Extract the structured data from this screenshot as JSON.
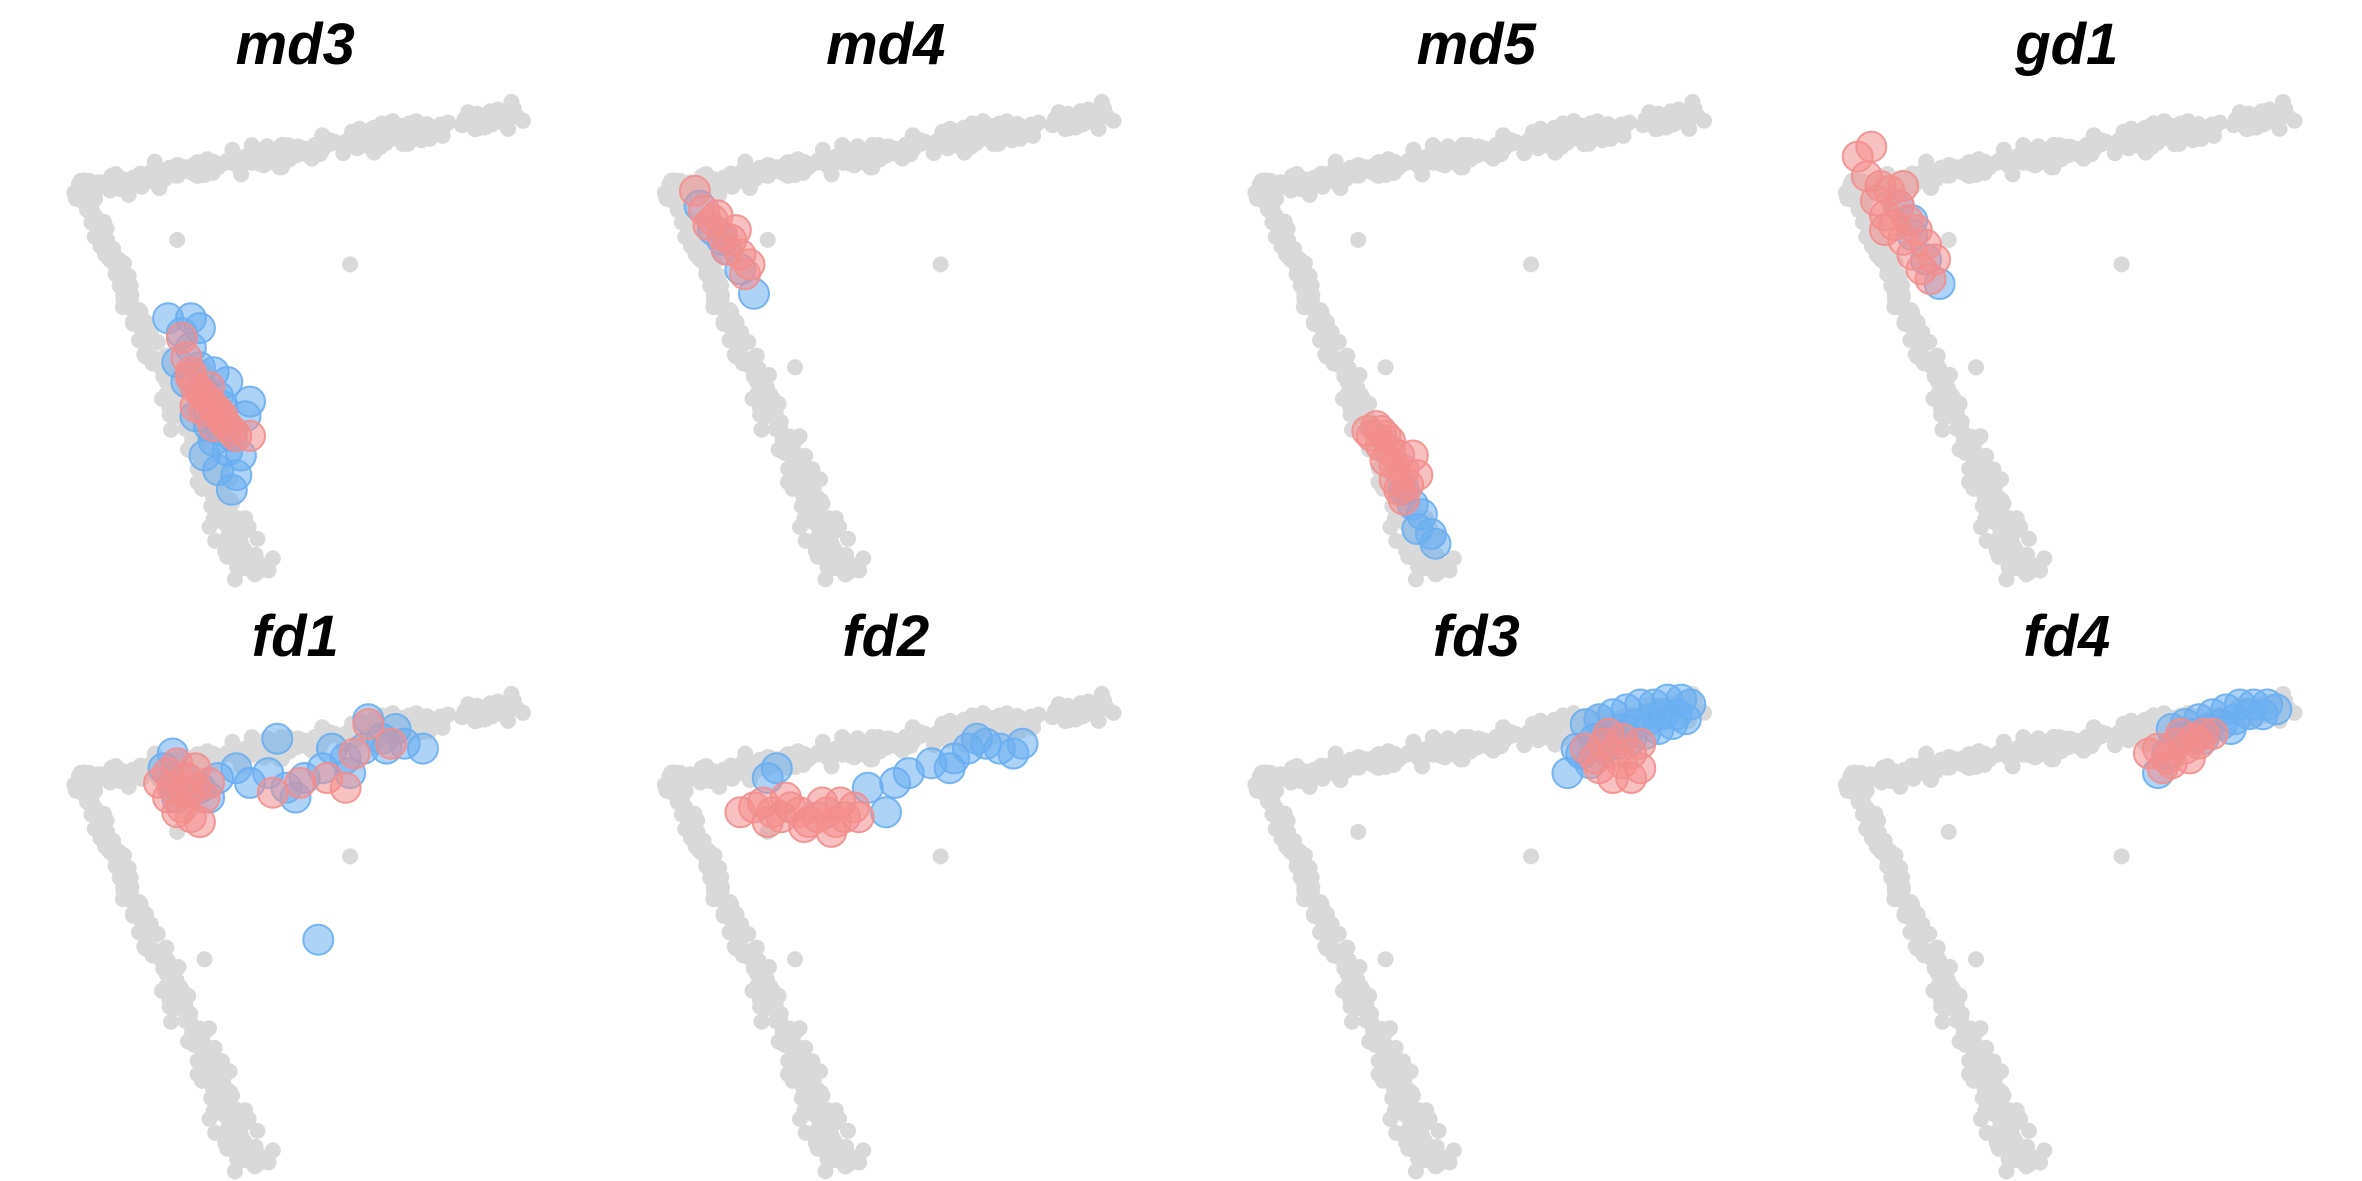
{
  "colors": {
    "background": "#d9d9d9",
    "blue": "#6aaef0",
    "red": "#f28e8e"
  },
  "chart_data": [
    {
      "type": "scatter",
      "title": "md3",
      "grid": false,
      "axes": "hidden",
      "xlim": [
        0,
        1
      ],
      "ylim": [
        0,
        1
      ],
      "series": [
        {
          "color": "blue",
          "x": [
            0.22,
            0.25,
            0.27,
            0.24,
            0.29,
            0.26,
            0.3,
            0.33,
            0.31,
            0.28,
            0.34,
            0.36,
            0.32,
            0.35,
            0.38,
            0.3,
            0.33,
            0.37,
            0.36,
            0.4,
            0.34,
            0.29,
            0.27,
            0.39,
            0.31,
            0.35,
            0.32
          ],
          "y": [
            0.53,
            0.5,
            0.47,
            0.44,
            0.43,
            0.4,
            0.38,
            0.37,
            0.34,
            0.33,
            0.3,
            0.29,
            0.28,
            0.26,
            0.25,
            0.25,
            0.22,
            0.21,
            0.18,
            0.36,
            0.35,
            0.51,
            0.53,
            0.33,
            0.31,
            0.4,
            0.42
          ]
        },
        {
          "color": "red",
          "x": [
            0.25,
            0.26,
            0.27,
            0.28,
            0.29,
            0.3,
            0.31,
            0.32,
            0.33,
            0.34,
            0.35,
            0.36,
            0.28,
            0.3,
            0.32,
            0.34,
            0.37,
            0.4,
            0.27,
            0.31
          ],
          "y": [
            0.49,
            0.45,
            0.41,
            0.39,
            0.38,
            0.37,
            0.36,
            0.35,
            0.34,
            0.33,
            0.31,
            0.3,
            0.35,
            0.34,
            0.31,
            0.32,
            0.29,
            0.29,
            0.42,
            0.39
          ]
        }
      ]
    },
    {
      "type": "scatter",
      "title": "md4",
      "grid": false,
      "axes": "hidden",
      "xlim": [
        0,
        1
      ],
      "ylim": [
        0,
        1
      ],
      "series": [
        {
          "color": "blue",
          "x": [
            0.09,
            0.12,
            0.15,
            0.18,
            0.21,
            0.14
          ],
          "y": [
            0.76,
            0.71,
            0.67,
            0.63,
            0.58,
            0.69
          ]
        },
        {
          "color": "red",
          "x": [
            0.08,
            0.1,
            0.12,
            0.14,
            0.16,
            0.18,
            0.2,
            0.11,
            0.15,
            0.19,
            0.13,
            0.17
          ],
          "y": [
            0.79,
            0.75,
            0.73,
            0.7,
            0.69,
            0.66,
            0.64,
            0.72,
            0.67,
            0.62,
            0.74,
            0.71
          ]
        }
      ]
    },
    {
      "type": "scatter",
      "title": "md5",
      "grid": false,
      "axes": "hidden",
      "xlim": [
        0,
        1
      ],
      "ylim": [
        0,
        1
      ],
      "series": [
        {
          "color": "blue",
          "x": [
            0.34,
            0.36,
            0.38,
            0.37,
            0.4,
            0.41
          ],
          "y": [
            0.18,
            0.15,
            0.13,
            0.1,
            0.09,
            0.07
          ]
        },
        {
          "color": "red",
          "x": [
            0.26,
            0.28,
            0.3,
            0.29,
            0.31,
            0.33,
            0.32,
            0.34,
            0.3,
            0.32,
            0.35,
            0.33,
            0.31,
            0.36,
            0.34,
            0.29,
            0.27,
            0.37
          ],
          "y": [
            0.3,
            0.31,
            0.29,
            0.27,
            0.26,
            0.25,
            0.23,
            0.22,
            0.24,
            0.2,
            0.19,
            0.18,
            0.28,
            0.25,
            0.16,
            0.3,
            0.29,
            0.21
          ]
        }
      ]
    },
    {
      "type": "scatter",
      "title": "gd1",
      "grid": false,
      "axes": "hidden",
      "xlim": [
        0,
        1
      ],
      "ylim": [
        0,
        1
      ],
      "series": [
        {
          "color": "blue",
          "x": [
            0.13,
            0.16,
            0.19,
            0.22,
            0.16
          ],
          "y": [
            0.76,
            0.7,
            0.65,
            0.6,
            0.73
          ]
        },
        {
          "color": "red",
          "x": [
            0.04,
            0.07,
            0.06,
            0.09,
            0.08,
            0.11,
            0.1,
            0.13,
            0.12,
            0.15,
            0.14,
            0.17,
            0.16,
            0.19,
            0.18,
            0.21,
            0.2,
            0.14,
            0.1
          ],
          "y": [
            0.86,
            0.88,
            0.82,
            0.8,
            0.77,
            0.79,
            0.74,
            0.76,
            0.72,
            0.73,
            0.69,
            0.71,
            0.66,
            0.68,
            0.63,
            0.65,
            0.61,
            0.8,
            0.71
          ]
        }
      ]
    },
    {
      "type": "scatter",
      "title": "fd1",
      "grid": false,
      "axes": "hidden",
      "xlim": [
        0,
        1
      ],
      "ylim": [
        0,
        1
      ],
      "series": [
        {
          "color": "blue",
          "x": [
            0.21,
            0.23,
            0.26,
            0.24,
            0.29,
            0.33,
            0.37,
            0.4,
            0.44,
            0.48,
            0.52,
            0.56,
            0.61,
            0.65,
            0.69,
            0.74,
            0.78,
            0.66,
            0.72,
            0.46,
            0.58,
            0.23,
            0.31,
            0.5,
            0.62,
            0.7,
            0.55
          ],
          "y": [
            0.82,
            0.79,
            0.8,
            0.76,
            0.78,
            0.8,
            0.82,
            0.79,
            0.81,
            0.78,
            0.8,
            0.82,
            0.84,
            0.86,
            0.88,
            0.87,
            0.86,
            0.92,
            0.9,
            0.88,
            0.86,
            0.85,
            0.76,
            0.76,
            0.81,
            0.86,
            0.47
          ]
        },
        {
          "color": "red",
          "x": [
            0.2,
            0.22,
            0.24,
            0.26,
            0.28,
            0.3,
            0.25,
            0.27,
            0.29,
            0.23,
            0.31,
            0.24,
            0.28,
            0.26,
            0.22,
            0.45,
            0.51,
            0.57,
            0.61,
            0.63,
            0.66,
            0.71
          ],
          "y": [
            0.79,
            0.81,
            0.83,
            0.8,
            0.78,
            0.76,
            0.74,
            0.72,
            0.71,
            0.78,
            0.79,
            0.73,
            0.82,
            0.77,
            0.76,
            0.77,
            0.79,
            0.8,
            0.78,
            0.85,
            0.91,
            0.87
          ]
        }
      ]
    },
    {
      "type": "scatter",
      "title": "fd2",
      "grid": false,
      "axes": "hidden",
      "xlim": [
        0,
        1
      ],
      "ylim": [
        0,
        1
      ],
      "series": [
        {
          "color": "blue",
          "x": [
            0.24,
            0.26,
            0.46,
            0.52,
            0.55,
            0.6,
            0.65,
            0.68,
            0.72,
            0.75,
            0.78,
            0.8,
            0.7,
            0.64,
            0.5
          ],
          "y": [
            0.8,
            0.82,
            0.78,
            0.79,
            0.81,
            0.83,
            0.84,
            0.86,
            0.87,
            0.86,
            0.85,
            0.87,
            0.88,
            0.82,
            0.73
          ]
        },
        {
          "color": "red",
          "x": [
            0.18,
            0.21,
            0.23,
            0.25,
            0.27,
            0.29,
            0.31,
            0.33,
            0.35,
            0.37,
            0.39,
            0.41,
            0.43,
            0.44,
            0.32,
            0.28,
            0.38,
            0.4,
            0.24,
            0.36
          ],
          "y": [
            0.73,
            0.74,
            0.75,
            0.73,
            0.72,
            0.74,
            0.73,
            0.71,
            0.72,
            0.73,
            0.71,
            0.72,
            0.74,
            0.72,
            0.7,
            0.76,
            0.69,
            0.75,
            0.71,
            0.75
          ]
        }
      ]
    },
    {
      "type": "scatter",
      "title": "fd3",
      "grid": false,
      "axes": "hidden",
      "xlim": [
        0,
        1
      ],
      "ylim": [
        0,
        1
      ],
      "series": [
        {
          "color": "blue",
          "x": [
            0.74,
            0.77,
            0.8,
            0.83,
            0.86,
            0.89,
            0.92,
            0.95,
            0.97,
            0.76,
            0.79,
            0.82,
            0.85,
            0.88,
            0.91,
            0.94,
            0.78,
            0.81,
            0.84,
            0.87,
            0.9,
            0.93,
            0.96,
            0.72,
            0.75,
            0.7,
            0.73
          ],
          "y": [
            0.91,
            0.92,
            0.93,
            0.94,
            0.95,
            0.95,
            0.96,
            0.96,
            0.95,
            0.88,
            0.89,
            0.9,
            0.91,
            0.92,
            0.93,
            0.93,
            0.86,
            0.87,
            0.88,
            0.89,
            0.9,
            0.91,
            0.92,
            0.86,
            0.83,
            0.81,
            0.85
          ]
        },
        {
          "color": "red",
          "x": [
            0.74,
            0.76,
            0.78,
            0.8,
            0.82,
            0.84,
            0.86,
            0.8,
            0.84,
            0.77,
            0.82,
            0.86,
            0.79
          ],
          "y": [
            0.86,
            0.84,
            0.87,
            0.85,
            0.83,
            0.85,
            0.82,
            0.8,
            0.8,
            0.82,
            0.88,
            0.87,
            0.89
          ]
        }
      ]
    },
    {
      "type": "scatter",
      "title": "fd4",
      "grid": false,
      "axes": "hidden",
      "xlim": [
        0,
        1
      ],
      "ylim": [
        0,
        1
      ],
      "series": [
        {
          "color": "blue",
          "x": [
            0.73,
            0.76,
            0.79,
            0.82,
            0.85,
            0.88,
            0.91,
            0.94,
            0.96,
            0.75,
            0.78,
            0.81,
            0.84,
            0.87,
            0.9,
            0.93,
            0.72,
            0.7,
            0.8,
            0.86
          ],
          "y": [
            0.9,
            0.91,
            0.92,
            0.93,
            0.94,
            0.95,
            0.95,
            0.95,
            0.94,
            0.88,
            0.89,
            0.9,
            0.91,
            0.92,
            0.93,
            0.93,
            0.85,
            0.81,
            0.88,
            0.9
          ]
        },
        {
          "color": "red",
          "x": [
            0.68,
            0.7,
            0.72,
            0.74,
            0.76,
            0.78,
            0.8,
            0.73,
            0.77,
            0.82,
            0.75,
            0.71,
            0.79
          ],
          "y": [
            0.85,
            0.86,
            0.84,
            0.87,
            0.86,
            0.88,
            0.89,
            0.83,
            0.84,
            0.89,
            0.89,
            0.82,
            0.87
          ]
        }
      ]
    }
  ]
}
